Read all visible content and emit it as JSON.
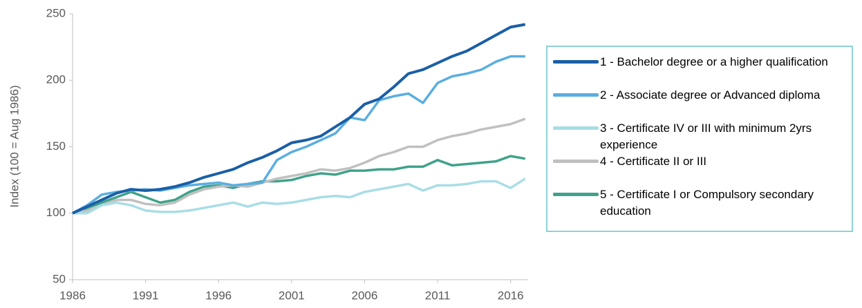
{
  "chart_data": {
    "type": "line",
    "ylabel": "Index (100 = Aug 1986)",
    "x": [
      1986,
      1987,
      1988,
      1989,
      1990,
      1991,
      1992,
      1993,
      1994,
      1995,
      1996,
      1997,
      1998,
      1999,
      2000,
      2001,
      2002,
      2003,
      2004,
      2005,
      2006,
      2007,
      2008,
      2009,
      2010,
      2011,
      2012,
      2013,
      2014,
      2015,
      2016,
      2017
    ],
    "series": [
      {
        "name": "1 - Bachelor degree or a higher qualification",
        "color": "#1a5fa6",
        "values": [
          100,
          105,
          110,
          115,
          118,
          117,
          118,
          120,
          123,
          127,
          130,
          133,
          138,
          142,
          147,
          153,
          155,
          158,
          165,
          172,
          182,
          186,
          195,
          205,
          208,
          213,
          218,
          222,
          228,
          234,
          240,
          242
        ]
      },
      {
        "name": "2 - Associate degree or Advanced diploma",
        "color": "#5aaee0",
        "values": [
          100,
          106,
          114,
          116,
          117,
          118,
          117,
          119,
          121,
          122,
          123,
          121,
          122,
          123,
          140,
          146,
          150,
          155,
          160,
          172,
          170,
          185,
          188,
          190,
          183,
          198,
          203,
          205,
          208,
          214,
          218,
          218
        ]
      },
      {
        "name": "3 - Certificate IV or III with minimum 2yrs experience",
        "color": "#a9dde6",
        "values": [
          100,
          100,
          106,
          108,
          106,
          102,
          101,
          101,
          102,
          104,
          106,
          108,
          105,
          108,
          107,
          108,
          110,
          112,
          113,
          112,
          116,
          118,
          120,
          122,
          117,
          121,
          121,
          122,
          124,
          124,
          119,
          126
        ]
      },
      {
        "name": "4 - Certificate II or III",
        "color": "#c0c0c0",
        "values": [
          100,
          102,
          106,
          110,
          110,
          107,
          106,
          108,
          114,
          118,
          120,
          121,
          120,
          123,
          126,
          128,
          130,
          133,
          132,
          134,
          138,
          143,
          146,
          150,
          150,
          155,
          158,
          160,
          163,
          165,
          167,
          171
        ]
      },
      {
        "name": "5 - Certificate I or Compulsory secondary education",
        "color": "#3fa28a",
        "values": [
          100,
          104,
          108,
          112,
          116,
          112,
          108,
          110,
          116,
          120,
          121,
          119,
          122,
          124,
          124,
          125,
          128,
          130,
          129,
          132,
          132,
          133,
          133,
          135,
          135,
          140,
          136,
          137,
          138,
          139,
          143,
          141
        ]
      }
    ],
    "xlim": [
      1986,
      2017.2
    ],
    "xticks": [
      1986,
      1991,
      1996,
      2001,
      2006,
      2011,
      2016
    ],
    "ylim": [
      50,
      250
    ],
    "yticks": [
      50,
      100,
      150,
      200,
      250
    ],
    "grid": false
  }
}
